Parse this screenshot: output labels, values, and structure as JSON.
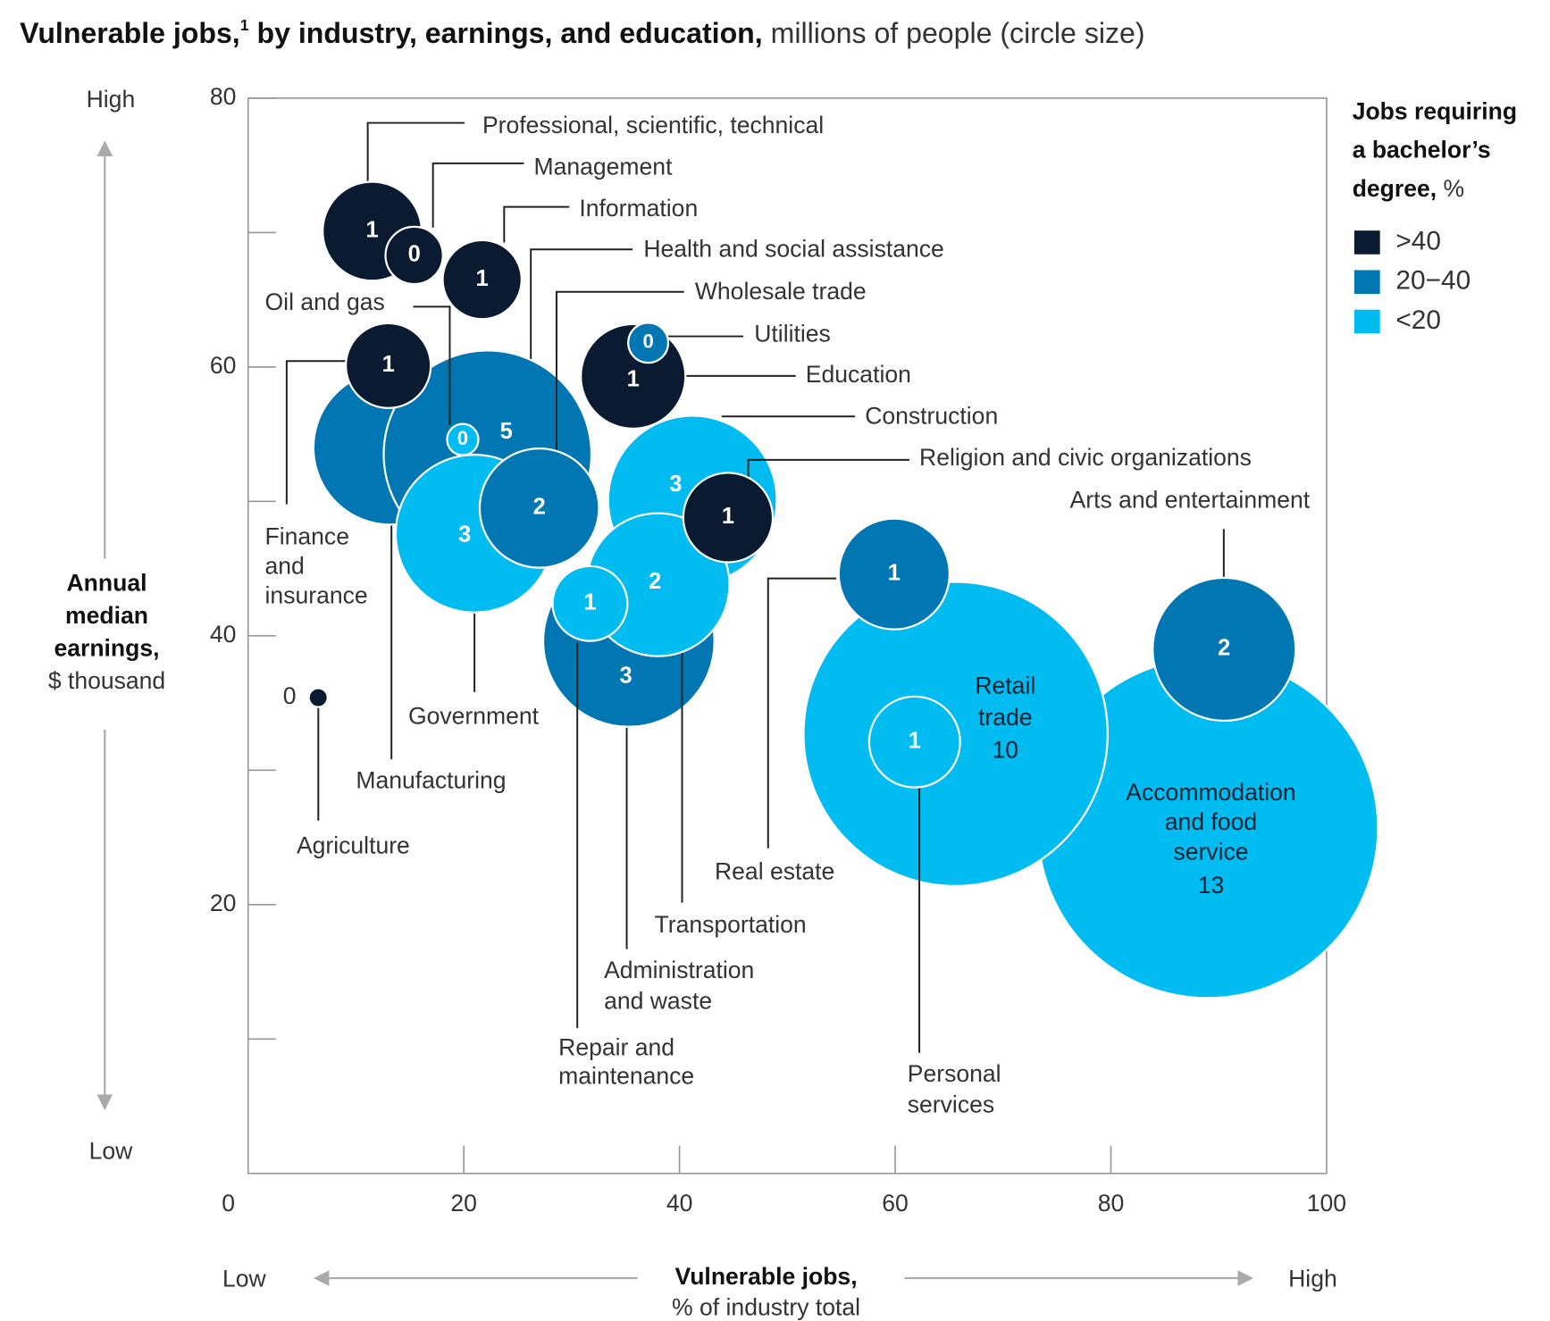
{
  "chart_data": {
    "type": "bubble",
    "title": {
      "bold1": "Vulnerable jobs,",
      "sup": "1",
      "bold2": " by industry, earnings, and education,",
      "normal": " millions of people (circle size)"
    },
    "x_label": {
      "bold": "Vulnerable jobs,",
      "normal": "% of industry total"
    },
    "y_label": {
      "bold": [
        "Annual",
        "median",
        "earnings,"
      ],
      "normal": "$ thousand"
    },
    "x_low": "Low",
    "x_high": "High",
    "y_low": "Low",
    "y_high": "High",
    "xlim": [
      0,
      100
    ],
    "xticks": [
      0,
      20,
      40,
      60,
      80,
      100
    ],
    "ylim": [
      0,
      80
    ],
    "yticks": [
      20,
      40,
      60,
      80
    ],
    "yminor": [
      10,
      30,
      50,
      70
    ],
    "legend": {
      "title": [
        "Jobs requiring",
        "a bachelor’s",
        "degree,"
      ],
      "title_unit": " %",
      "position": "top-right"
    },
    "series": [
      {
        "name": ">40",
        "color": "#0a1a30"
      },
      {
        "name": "20−40",
        "color": "#0077b3"
      },
      {
        "name": "<20",
        "color": "#00bcf0"
      }
    ],
    "points": [
      {
        "name": [
          "Accommodation",
          "and food",
          "service"
        ],
        "x": 89.0,
        "y": 25.7,
        "size": 13,
        "size_label": "13",
        "group": 2
      },
      {
        "name": [
          "Retail",
          "trade"
        ],
        "x": 65.6,
        "y": 32.7,
        "size": 10.4,
        "size_label": "10",
        "group": 2
      },
      {
        "name": [
          "Arts and entertainment"
        ],
        "x": 90.5,
        "y": 39.0,
        "size": 2.3,
        "size_label": "2",
        "group": 1
      },
      {
        "name": [
          "Personal",
          "services"
        ],
        "x": 61.8,
        "y": 32.1,
        "size": 0.93,
        "size_label": "1",
        "group": 2
      },
      {
        "name": [
          "Real estate"
        ],
        "x": 59.9,
        "y": 44.6,
        "size": 1.38,
        "size_label": "1",
        "group": 1
      },
      {
        "name": [
          "Manufacturing"
        ],
        "x": 13.2,
        "y": 54.0,
        "size": 2.67,
        "size_label": "3",
        "group": 1
      },
      {
        "name": [
          "Health and social assistance"
        ],
        "x": 22.2,
        "y": 53.5,
        "size": 4.85,
        "size_label": "5",
        "group": 1
      },
      {
        "name": [
          "Finance",
          "and",
          "insurance"
        ],
        "x": 13.0,
        "y": 60.1,
        "size": 0.81,
        "size_label": "1",
        "group": 0
      },
      {
        "name": [
          "Oil and gas"
        ],
        "x": 19.9,
        "y": 54.6,
        "size": 0.11,
        "size_label": "0",
        "group": 2
      },
      {
        "name": [
          "Government"
        ],
        "x": 21.0,
        "y": 47.6,
        "size": 2.8,
        "size_label": "3",
        "group": 2
      },
      {
        "name": [
          "Wholesale trade"
        ],
        "x": 27.0,
        "y": 49.5,
        "size": 1.6,
        "size_label": "2",
        "group": 1
      },
      {
        "name": [
          "Administration",
          "and waste"
        ],
        "x": 35.3,
        "y": 39.6,
        "size": 3.3,
        "size_label": "3",
        "group": 1
      },
      {
        "name": [
          "Construction"
        ],
        "x": 41.2,
        "y": 50.1,
        "size": 3.2,
        "size_label": "3",
        "group": 2
      },
      {
        "name": [
          "Transportation"
        ],
        "x": 38.0,
        "y": 43.8,
        "size": 2.3,
        "size_label": "2",
        "group": 2
      },
      {
        "name": [
          "Repair and",
          "maintenance"
        ],
        "x": 31.7,
        "y": 42.4,
        "size": 0.63,
        "size_label": "1",
        "group": 2
      },
      {
        "name": [
          "Religion and civic organizations"
        ],
        "x": 44.5,
        "y": 48.8,
        "size": 0.9,
        "size_label": "1",
        "group": 0
      },
      {
        "name": [
          "Education"
        ],
        "x": 35.7,
        "y": 59.3,
        "size": 1.23,
        "size_label": "1",
        "group": 0
      },
      {
        "name": [
          "Utilities"
        ],
        "x": 37.1,
        "y": 61.8,
        "size": 0.18,
        "size_label": "0",
        "group": 1
      },
      {
        "name": [
          "Professional, scientific, technical"
        ],
        "x": 11.5,
        "y": 70.1,
        "size": 1.1,
        "size_label": "1",
        "group": 0
      },
      {
        "name": [
          "Management"
        ],
        "x": 15.4,
        "y": 68.3,
        "size": 0.37,
        "size_label": "0",
        "group": 0
      },
      {
        "name": [
          "Information"
        ],
        "x": 21.7,
        "y": 66.5,
        "size": 0.7,
        "size_label": "1",
        "group": 0
      },
      {
        "name": [
          "Agriculture"
        ],
        "x": 6.5,
        "y": 35.4,
        "size": 0.04,
        "size_label": "0",
        "group": 0
      }
    ]
  }
}
